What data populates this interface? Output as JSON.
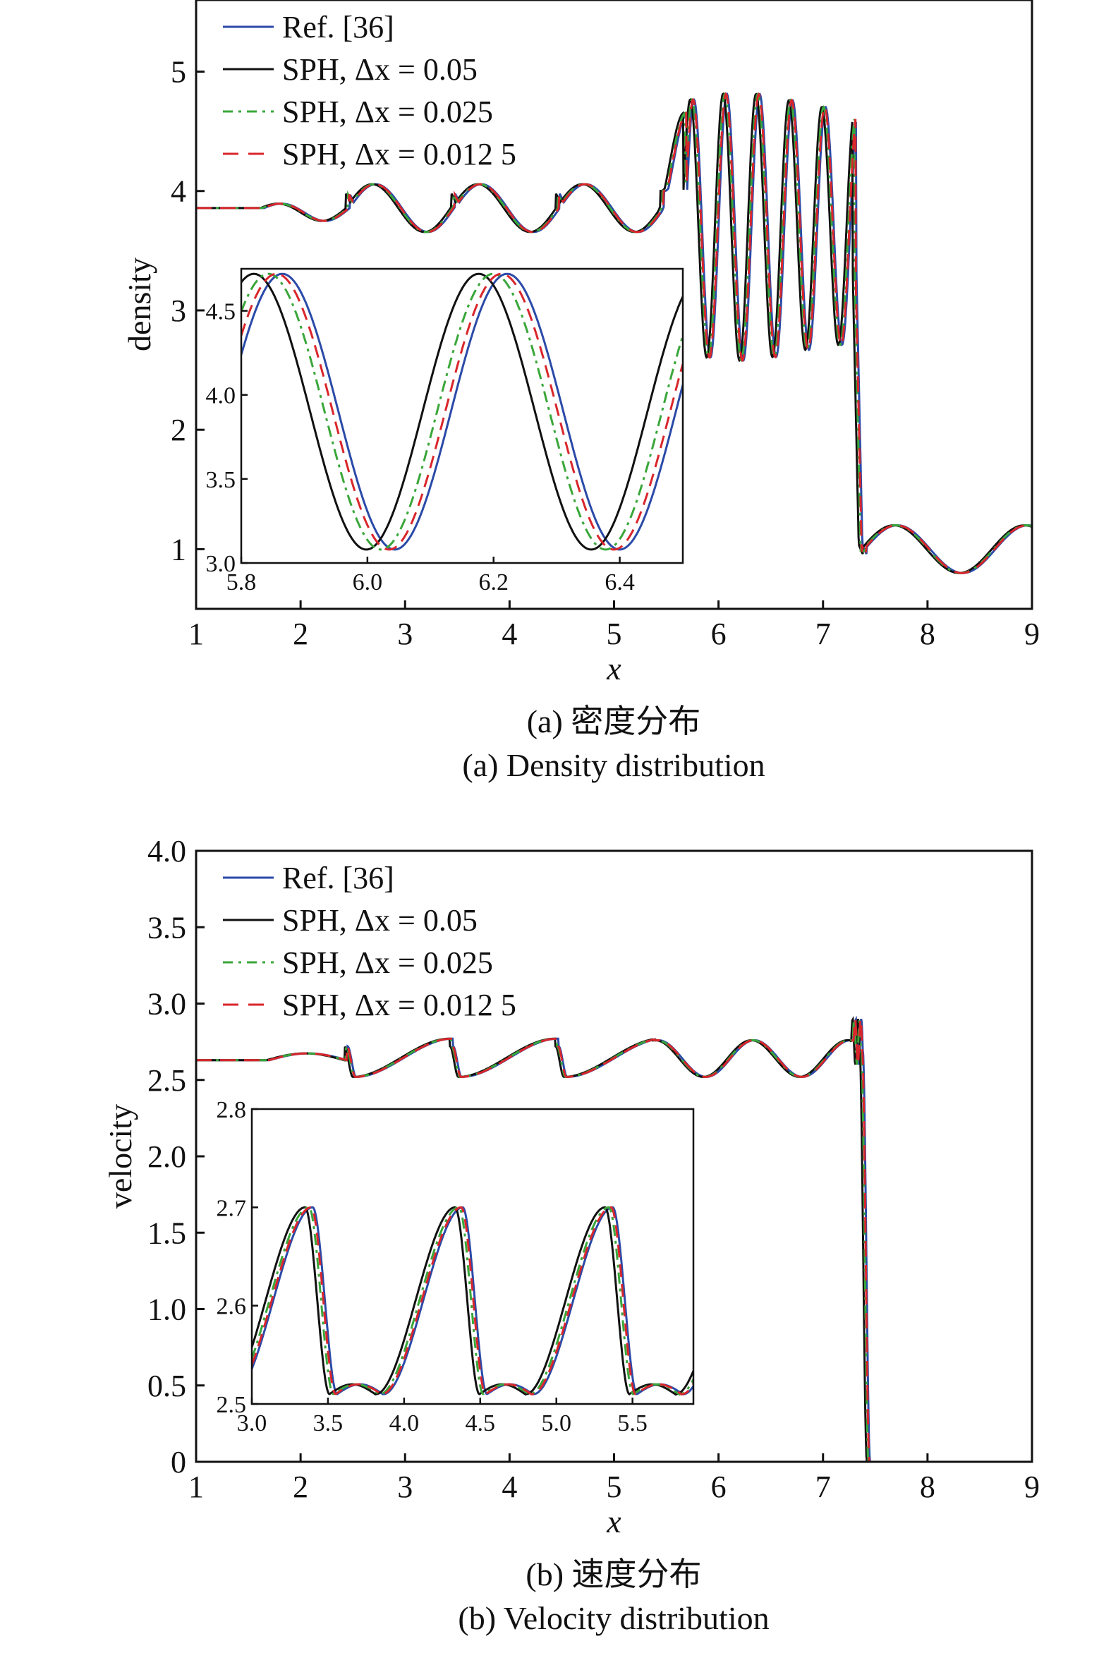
{
  "chart_data": [
    {
      "type": "line",
      "caption_cn": "(a) 密度分布",
      "caption_en": "(a) Density distribution",
      "xlabel": "x",
      "ylabel": "density",
      "xlim": [
        1,
        9
      ],
      "ylim": [
        0.5,
        5.6
      ],
      "xticks": [
        "1",
        "2",
        "3",
        "4",
        "5",
        "6",
        "7",
        "8",
        "9"
      ],
      "yticks": [
        "1",
        "2",
        "3",
        "4",
        "5"
      ],
      "legend_placement": "top-left",
      "series": [
        {
          "name": "Ref. [36]",
          "color": "#2b4aa8",
          "dash": "solid",
          "shift": 0.0
        },
        {
          "name": "SPH, Δx = 0.05",
          "color": "#111111",
          "dash": "solid",
          "shift": -0.035
        },
        {
          "name": "SPH, Δx = 0.025",
          "color": "#3aa63a",
          "dash": "dashdot",
          "shift": -0.018
        },
        {
          "name": "SPH, Δx = 0.012 5",
          "color": "#d9262c",
          "dash": "dashed",
          "shift": -0.008
        }
      ],
      "inset": {
        "xlim": [
          5.8,
          6.5
        ],
        "ylim": [
          3.0,
          4.75
        ],
        "xticks": [
          "5.8",
          "6.0",
          "6.2",
          "6.4"
        ],
        "yticks": [
          "3.0",
          "3.5",
          "4.0",
          "4.5"
        ]
      }
    },
    {
      "type": "line",
      "caption_cn": "(b) 速度分布",
      "caption_en": "(b) Velocity distribution",
      "xlabel": "x",
      "ylabel": "velocity",
      "xlim": [
        1,
        9
      ],
      "ylim": [
        0,
        4.0
      ],
      "xticks": [
        "1",
        "2",
        "3",
        "4",
        "5",
        "6",
        "7",
        "8",
        "9"
      ],
      "yticks": [
        "0",
        "0.5",
        "1.0",
        "1.5",
        "2.0",
        "2.5",
        "3.0",
        "3.5",
        "4.0"
      ],
      "legend_placement": "top-left",
      "series": [
        {
          "name": "Ref. [36]",
          "color": "#2b4aa8",
          "dash": "solid",
          "shift": 0.0
        },
        {
          "name": "SPH, Δx = 0.05",
          "color": "#111111",
          "dash": "solid",
          "shift": -0.03
        },
        {
          "name": "SPH, Δx = 0.025",
          "color": "#3aa63a",
          "dash": "dashdot",
          "shift": -0.015
        },
        {
          "name": "SPH, Δx = 0.012 5",
          "color": "#d9262c",
          "dash": "dashed",
          "shift": -0.006
        }
      ],
      "inset": {
        "xlim": [
          3.0,
          5.9
        ],
        "ylim": [
          2.5,
          2.8
        ],
        "xticks": [
          "3.0",
          "3.5",
          "4.0",
          "4.5",
          "5.0",
          "5.5"
        ],
        "yticks": [
          "2.5",
          "2.6",
          "2.7",
          "2.8"
        ]
      }
    }
  ]
}
